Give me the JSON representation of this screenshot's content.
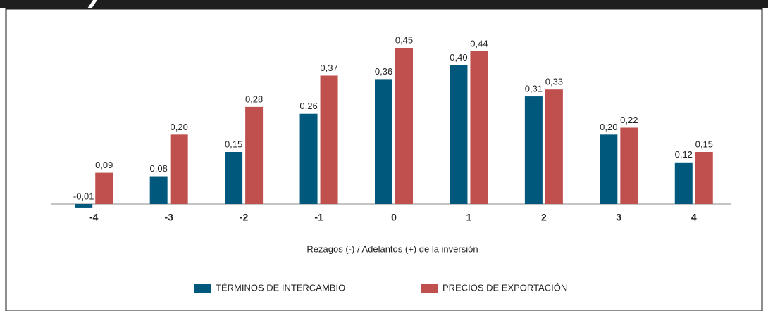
{
  "chart_data": {
    "type": "bar",
    "x_label": "Rezagos (-) / Adelantos (+) de la inversión",
    "categories": [
      "-4",
      "-3",
      "-2",
      "-1",
      "0",
      "1",
      "2",
      "3",
      "4"
    ],
    "series": [
      {
        "name": "TÉRMINOS DE INTERCAMBIO",
        "color": "#00587c",
        "values": [
          -0.01,
          0.08,
          0.15,
          0.26,
          0.36,
          0.4,
          0.31,
          0.2,
          0.12
        ],
        "value_labels": [
          "-0,01",
          "0,08",
          "0,15",
          "0,26",
          "0,36",
          "0,40",
          "0,31",
          "0,20",
          "0,12"
        ]
      },
      {
        "name": "PRECIOS DE EXPORTACIÓN",
        "color": "#c0504d",
        "values": [
          0.09,
          0.2,
          0.28,
          0.37,
          0.45,
          0.44,
          0.33,
          0.22,
          0.15
        ],
        "value_labels": [
          "0,09",
          "0,20",
          "0,28",
          "0,37",
          "0,45",
          "0,44",
          "0,33",
          "0,22",
          "0,15"
        ]
      }
    ]
  }
}
